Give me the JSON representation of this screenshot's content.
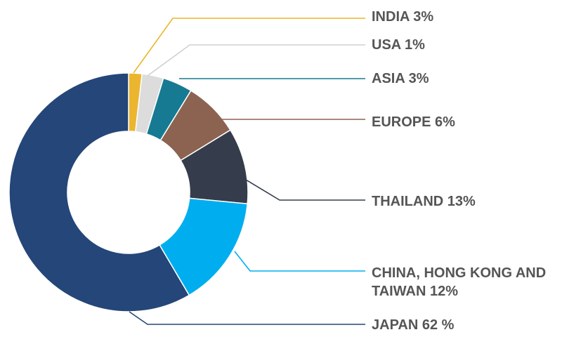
{
  "chart_data": {
    "type": "pie",
    "variant": "donut",
    "title": "",
    "legend": "callout-labels-right",
    "slices": [
      {
        "label": "INDIA 3%",
        "label_lines": [
          "INDIA 3%"
        ],
        "value": 3,
        "color": "#EBB62E"
      },
      {
        "label": "USA 1%",
        "label_lines": [
          "USA 1%"
        ],
        "value": 1,
        "color": "#DCDCDC"
      },
      {
        "label": "ASIA 3%",
        "label_lines": [
          "ASIA 3%"
        ],
        "value": 3,
        "color": "#167A92"
      },
      {
        "label": "EUROPE 6%",
        "label_lines": [
          "EUROPE 6%"
        ],
        "value": 6,
        "color": "#8C6350"
      },
      {
        "label": "THAILAND 13%",
        "label_lines": [
          "THAILAND 13%"
        ],
        "value": 13,
        "color": "#353D4C"
      },
      {
        "label": "CHINA, HONG KONG AND TAIWAN 12%",
        "label_lines": [
          "CHINA, HONG KONG AND",
          "TAIWAN 12%"
        ],
        "value": 12,
        "color": "#00AEEF"
      },
      {
        "label": "JAPAN 62 %",
        "label_lines": [
          "JAPAN 62 %"
        ],
        "value": 62,
        "color": "#244679"
      }
    ]
  }
}
